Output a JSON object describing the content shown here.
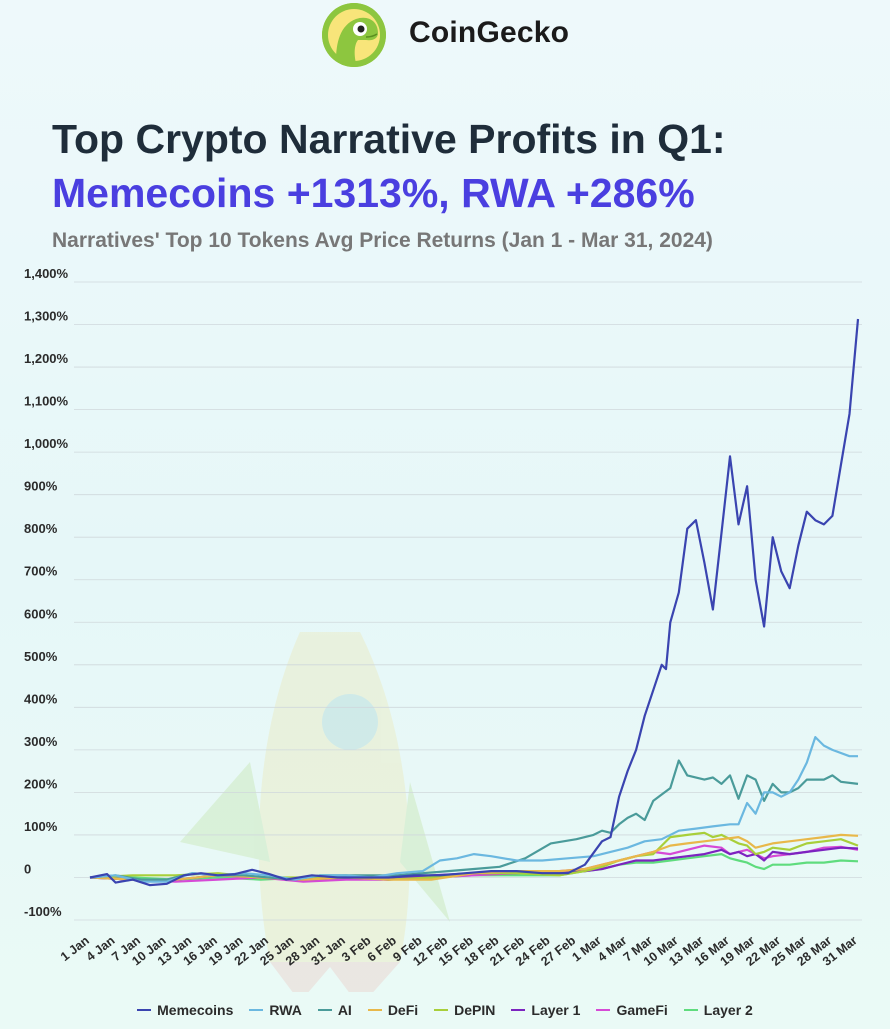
{
  "brand": {
    "name": "CoinGecko"
  },
  "chart_data": {
    "type": "line",
    "title": "Top Crypto Narrative Profits in Q1:",
    "highlight": "Memecoins +1313%, RWA +286%",
    "subtitle": "Narratives' Top 10 Tokens Avg Price Returns (Jan 1 - Mar 31, 2024)",
    "xlabel": "",
    "ylabel": "",
    "ylim": [
      -100,
      1400
    ],
    "yticks": [
      -100,
      0,
      100,
      200,
      300,
      400,
      500,
      600,
      700,
      800,
      900,
      1000,
      1100,
      1200,
      1300,
      1400
    ],
    "ytick_labels": [
      "-100%",
      "0",
      "100%",
      "200%",
      "300%",
      "400%",
      "500%",
      "600%",
      "700%",
      "800%",
      "900%",
      "1,000%",
      "1,100%",
      "1,200%",
      "1,300%",
      "1,400%"
    ],
    "grid": true,
    "x_days": 91,
    "xtick_days": [
      0,
      3,
      6,
      9,
      12,
      15,
      18,
      21,
      24,
      27,
      30,
      33,
      36,
      39,
      42,
      45,
      48,
      51,
      54,
      57,
      60,
      63,
      66,
      69,
      72,
      75,
      78,
      81,
      84,
      87,
      90
    ],
    "xtick_labels": [
      "1 Jan",
      "4 Jan",
      "7 Jan",
      "10 Jan",
      "13 Jan",
      "16 Jan",
      "19 Jan",
      "22 Jan",
      "25 Jan",
      "28 Jan",
      "31 Jan",
      "3 Feb",
      "6 Feb",
      "9 Feb",
      "12 Feb",
      "15 Feb",
      "18 Feb",
      "21 Feb",
      "24 Feb",
      "27 Feb",
      "1 Mar",
      "4 Mar",
      "7 Mar",
      "10 Mar",
      "13 Mar",
      "16 Mar",
      "19 Mar",
      "22 Mar",
      "25 Mar",
      "28 Mar",
      "31 Mar"
    ],
    "series": [
      {
        "name": "Memecoins",
        "color": "#3a44b0",
        "points": [
          [
            0,
            0
          ],
          [
            2,
            8
          ],
          [
            3,
            -12
          ],
          [
            5,
            -5
          ],
          [
            7,
            -18
          ],
          [
            9,
            -15
          ],
          [
            11,
            5
          ],
          [
            13,
            10
          ],
          [
            15,
            5
          ],
          [
            17,
            8
          ],
          [
            19,
            18
          ],
          [
            21,
            8
          ],
          [
            23,
            -5
          ],
          [
            26,
            5
          ],
          [
            29,
            0
          ],
          [
            32,
            0
          ],
          [
            35,
            0
          ],
          [
            38,
            5
          ],
          [
            41,
            5
          ],
          [
            44,
            10
          ],
          [
            47,
            15
          ],
          [
            50,
            15
          ],
          [
            53,
            10
          ],
          [
            56,
            10
          ],
          [
            58,
            30
          ],
          [
            60,
            85
          ],
          [
            61,
            95
          ],
          [
            62,
            190
          ],
          [
            63,
            250
          ],
          [
            64,
            300
          ],
          [
            65,
            380
          ],
          [
            66,
            440
          ],
          [
            67,
            500
          ],
          [
            67.5,
            490
          ],
          [
            68,
            600
          ],
          [
            69,
            670
          ],
          [
            70,
            820
          ],
          [
            71,
            840
          ],
          [
            72,
            740
          ],
          [
            73,
            630
          ],
          [
            74,
            810
          ],
          [
            75,
            990
          ],
          [
            76,
            830
          ],
          [
            77,
            920
          ],
          [
            78,
            700
          ],
          [
            79,
            590
          ],
          [
            80,
            800
          ],
          [
            81,
            720
          ],
          [
            82,
            680
          ],
          [
            83,
            780
          ],
          [
            84,
            860
          ],
          [
            85,
            840
          ],
          [
            86,
            830
          ],
          [
            87,
            850
          ],
          [
            88,
            970
          ],
          [
            89,
            1090
          ],
          [
            90,
            1313
          ]
        ]
      },
      {
        "name": "RWA",
        "color": "#6bb8e0",
        "points": [
          [
            0,
            0
          ],
          [
            3,
            5
          ],
          [
            6,
            -10
          ],
          [
            9,
            -10
          ],
          [
            12,
            10
          ],
          [
            15,
            5
          ],
          [
            18,
            10
          ],
          [
            21,
            5
          ],
          [
            24,
            -5
          ],
          [
            27,
            5
          ],
          [
            30,
            5
          ],
          [
            33,
            0
          ],
          [
            36,
            10
          ],
          [
            39,
            15
          ],
          [
            41,
            40
          ],
          [
            43,
            45
          ],
          [
            45,
            55
          ],
          [
            47,
            50
          ],
          [
            50,
            40
          ],
          [
            53,
            40
          ],
          [
            56,
            45
          ],
          [
            59,
            50
          ],
          [
            61,
            60
          ],
          [
            63,
            70
          ],
          [
            65,
            85
          ],
          [
            67,
            90
          ],
          [
            69,
            110
          ],
          [
            71,
            115
          ],
          [
            73,
            120
          ],
          [
            75,
            125
          ],
          [
            76,
            125
          ],
          [
            77,
            175
          ],
          [
            78,
            150
          ],
          [
            79,
            200
          ],
          [
            80,
            200
          ],
          [
            81,
            190
          ],
          [
            82,
            200
          ],
          [
            83,
            230
          ],
          [
            84,
            270
          ],
          [
            85,
            330
          ],
          [
            86,
            310
          ],
          [
            87,
            300
          ],
          [
            89,
            285
          ],
          [
            90,
            285
          ]
        ]
      },
      {
        "name": "AI",
        "color": "#4a9b9a",
        "points": [
          [
            0,
            0
          ],
          [
            3,
            5
          ],
          [
            6,
            -5
          ],
          [
            9,
            -5
          ],
          [
            12,
            10
          ],
          [
            15,
            5
          ],
          [
            18,
            5
          ],
          [
            21,
            0
          ],
          [
            24,
            -5
          ],
          [
            27,
            5
          ],
          [
            30,
            5
          ],
          [
            33,
            5
          ],
          [
            36,
            5
          ],
          [
            39,
            10
          ],
          [
            42,
            15
          ],
          [
            45,
            20
          ],
          [
            48,
            25
          ],
          [
            51,
            45
          ],
          [
            54,
            80
          ],
          [
            57,
            90
          ],
          [
            59,
            100
          ],
          [
            60,
            110
          ],
          [
            61,
            105
          ],
          [
            62,
            125
          ],
          [
            63,
            140
          ],
          [
            64,
            150
          ],
          [
            65,
            135
          ],
          [
            66,
            180
          ],
          [
            67,
            195
          ],
          [
            68,
            210
          ],
          [
            69,
            275
          ],
          [
            70,
            240
          ],
          [
            72,
            230
          ],
          [
            73,
            235
          ],
          [
            74,
            220
          ],
          [
            75,
            240
          ],
          [
            76,
            185
          ],
          [
            77,
            240
          ],
          [
            78,
            230
          ],
          [
            79,
            180
          ],
          [
            80,
            220
          ],
          [
            81,
            200
          ],
          [
            82,
            200
          ],
          [
            83,
            210
          ],
          [
            84,
            230
          ],
          [
            85,
            230
          ],
          [
            86,
            230
          ],
          [
            87,
            240
          ],
          [
            88,
            225
          ],
          [
            90,
            220
          ]
        ]
      },
      {
        "name": "DeFi",
        "color": "#e8b84a",
        "points": [
          [
            0,
            0
          ],
          [
            5,
            -5
          ],
          [
            10,
            -5
          ],
          [
            15,
            5
          ],
          [
            20,
            0
          ],
          [
            25,
            -5
          ],
          [
            30,
            0
          ],
          [
            35,
            -5
          ],
          [
            40,
            -5
          ],
          [
            45,
            10
          ],
          [
            50,
            15
          ],
          [
            55,
            15
          ],
          [
            58,
            20
          ],
          [
            60,
            30
          ],
          [
            62,
            40
          ],
          [
            64,
            50
          ],
          [
            66,
            60
          ],
          [
            68,
            75
          ],
          [
            70,
            80
          ],
          [
            72,
            85
          ],
          [
            74,
            90
          ],
          [
            76,
            95
          ],
          [
            77,
            85
          ],
          [
            78,
            70
          ],
          [
            79,
            75
          ],
          [
            80,
            80
          ],
          [
            82,
            85
          ],
          [
            84,
            90
          ],
          [
            86,
            95
          ],
          [
            88,
            100
          ],
          [
            90,
            98
          ]
        ]
      },
      {
        "name": "DePIN",
        "color": "#a8cf3a",
        "points": [
          [
            0,
            0
          ],
          [
            5,
            5
          ],
          [
            10,
            5
          ],
          [
            15,
            10
          ],
          [
            20,
            0
          ],
          [
            25,
            0
          ],
          [
            30,
            5
          ],
          [
            35,
            -5
          ],
          [
            40,
            0
          ],
          [
            45,
            10
          ],
          [
            50,
            10
          ],
          [
            55,
            5
          ],
          [
            58,
            15
          ],
          [
            60,
            25
          ],
          [
            62,
            40
          ],
          [
            64,
            50
          ],
          [
            66,
            55
          ],
          [
            68,
            95
          ],
          [
            70,
            100
          ],
          [
            72,
            105
          ],
          [
            73,
            95
          ],
          [
            74,
            100
          ],
          [
            76,
            80
          ],
          [
            77,
            75
          ],
          [
            78,
            55
          ],
          [
            79,
            60
          ],
          [
            80,
            70
          ],
          [
            82,
            65
          ],
          [
            84,
            80
          ],
          [
            86,
            85
          ],
          [
            88,
            90
          ],
          [
            90,
            75
          ]
        ]
      },
      {
        "name": "Layer 1",
        "color": "#7c24c0",
        "points": [
          [
            0,
            0
          ],
          [
            5,
            -5
          ],
          [
            10,
            -5
          ],
          [
            15,
            5
          ],
          [
            20,
            0
          ],
          [
            25,
            -5
          ],
          [
            30,
            0
          ],
          [
            35,
            -5
          ],
          [
            40,
            5
          ],
          [
            45,
            10
          ],
          [
            50,
            10
          ],
          [
            55,
            10
          ],
          [
            58,
            15
          ],
          [
            60,
            20
          ],
          [
            62,
            30
          ],
          [
            64,
            40
          ],
          [
            66,
            40
          ],
          [
            68,
            45
          ],
          [
            70,
            50
          ],
          [
            72,
            55
          ],
          [
            74,
            65
          ],
          [
            75,
            55
          ],
          [
            76,
            60
          ],
          [
            77,
            50
          ],
          [
            78,
            55
          ],
          [
            79,
            40
          ],
          [
            80,
            60
          ],
          [
            82,
            55
          ],
          [
            84,
            60
          ],
          [
            86,
            65
          ],
          [
            88,
            70
          ],
          [
            90,
            68
          ]
        ]
      },
      {
        "name": "GameFi",
        "color": "#d64ad6",
        "points": [
          [
            0,
            0
          ],
          [
            5,
            -5
          ],
          [
            10,
            -10
          ],
          [
            15,
            -5
          ],
          [
            20,
            0
          ],
          [
            25,
            -10
          ],
          [
            30,
            -5
          ],
          [
            35,
            -5
          ],
          [
            40,
            0
          ],
          [
            45,
            5
          ],
          [
            50,
            10
          ],
          [
            55,
            15
          ],
          [
            58,
            20
          ],
          [
            60,
            30
          ],
          [
            62,
            40
          ],
          [
            64,
            50
          ],
          [
            66,
            60
          ],
          [
            68,
            55
          ],
          [
            70,
            65
          ],
          [
            72,
            75
          ],
          [
            74,
            70
          ],
          [
            75,
            55
          ],
          [
            76,
            60
          ],
          [
            77,
            65
          ],
          [
            78,
            55
          ],
          [
            79,
            45
          ],
          [
            80,
            50
          ],
          [
            82,
            55
          ],
          [
            84,
            60
          ],
          [
            86,
            70
          ],
          [
            88,
            72
          ],
          [
            90,
            65
          ]
        ]
      },
      {
        "name": "Layer 2",
        "color": "#5fdc7e",
        "points": [
          [
            0,
            0
          ],
          [
            5,
            0
          ],
          [
            10,
            -5
          ],
          [
            15,
            0
          ],
          [
            20,
            -5
          ],
          [
            25,
            0
          ],
          [
            30,
            0
          ],
          [
            35,
            0
          ],
          [
            40,
            0
          ],
          [
            45,
            5
          ],
          [
            50,
            5
          ],
          [
            55,
            5
          ],
          [
            58,
            15
          ],
          [
            60,
            20
          ],
          [
            62,
            30
          ],
          [
            64,
            35
          ],
          [
            66,
            35
          ],
          [
            68,
            40
          ],
          [
            70,
            45
          ],
          [
            72,
            50
          ],
          [
            74,
            55
          ],
          [
            75,
            45
          ],
          [
            76,
            40
          ],
          [
            77,
            35
          ],
          [
            78,
            25
          ],
          [
            79,
            20
          ],
          [
            80,
            30
          ],
          [
            82,
            30
          ],
          [
            84,
            35
          ],
          [
            86,
            35
          ],
          [
            88,
            40
          ],
          [
            90,
            38
          ]
        ]
      }
    ]
  }
}
